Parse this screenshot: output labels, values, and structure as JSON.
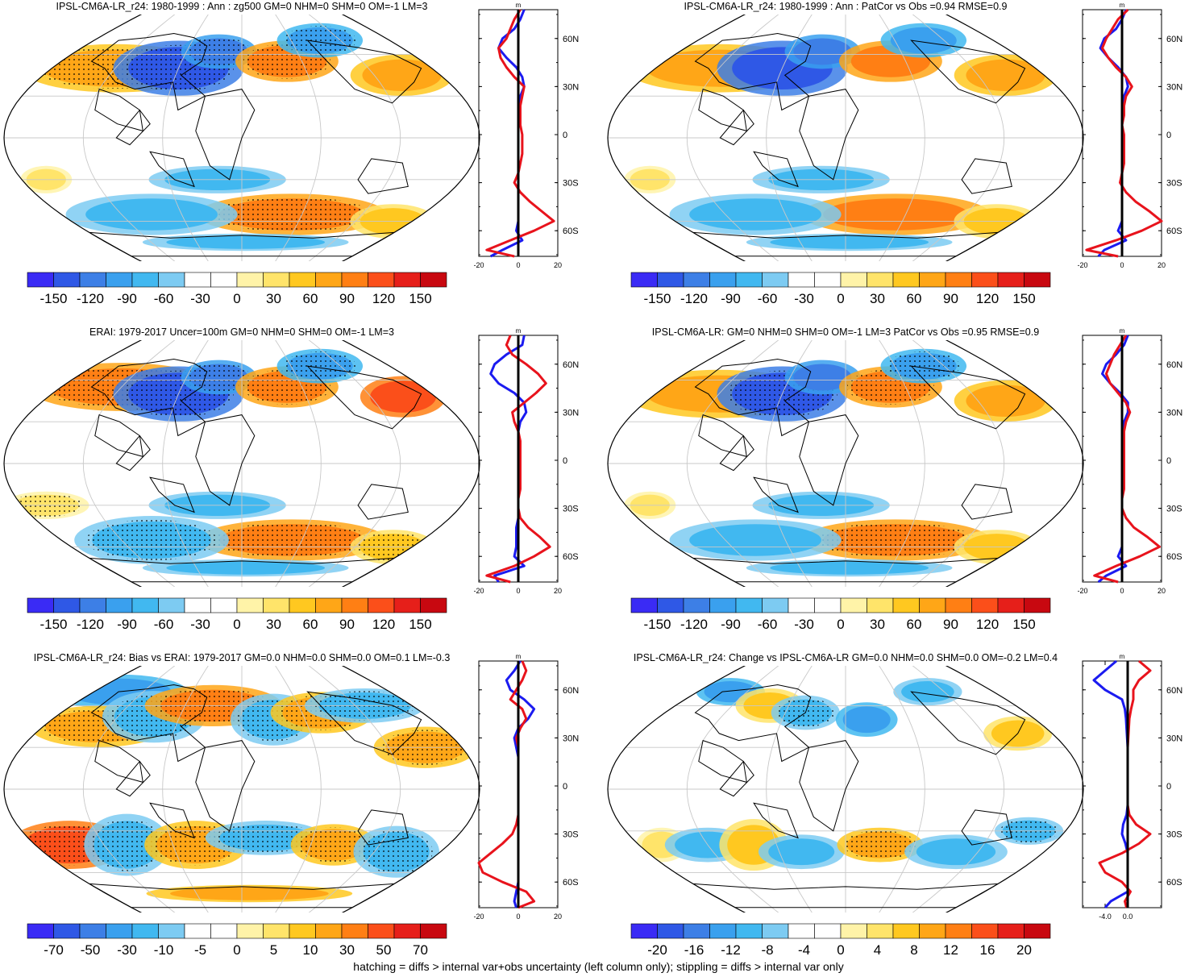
{
  "chart_data": [
    {
      "type": "heatmap",
      "title": "IPSL-CM6A-LR_r24: 1980-1999 : Ann : zg500 GM=0 NHM=0 SHM=0 OM=-1 LM=3",
      "colorbar_ticks": [
        "-150",
        "-120",
        "-90",
        "-60",
        "-30",
        "0",
        "30",
        "60",
        "90",
        "120",
        "150"
      ],
      "zonal": {
        "unit": "m",
        "xticks": [
          "-20",
          "0",
          "20"
        ],
        "xlim": [
          -20,
          20
        ],
        "ylabels": [
          "60N",
          "30N",
          "0",
          "30S",
          "60S"
        ],
        "lat": [
          78,
          72,
          66,
          60,
          54,
          48,
          42,
          36,
          30,
          24,
          18,
          12,
          6,
          0,
          -6,
          -12,
          -18,
          -24,
          -30,
          -36,
          -42,
          -48,
          -54,
          -60,
          -66,
          -72,
          -76
        ],
        "model": [
          1,
          -2,
          -4,
          -6,
          -10,
          -9,
          -6,
          -2,
          3,
          2,
          1,
          1,
          1,
          2,
          2,
          2,
          1,
          0,
          -2,
          1,
          6,
          12,
          18,
          8,
          -4,
          -16,
          -2
        ],
        "obs": [
          3,
          1,
          -2,
          -8,
          -10,
          -6,
          -1,
          2,
          3,
          1,
          0,
          0,
          0,
          0,
          0,
          0,
          0,
          0,
          0,
          0,
          0,
          0,
          0,
          -1,
          2,
          -8,
          -14
        ]
      }
    },
    {
      "type": "heatmap",
      "title": "IPSL-CM6A-LR_r24: 1980-1999 : Ann : PatCor vs Obs =0.94 RMSE=0.9",
      "colorbar_ticks": [
        "-150",
        "-120",
        "-90",
        "-60",
        "-30",
        "0",
        "30",
        "60",
        "90",
        "120",
        "150"
      ],
      "zonal": {
        "unit": "m",
        "xticks": [
          "-20",
          "0",
          "20"
        ],
        "xlim": [
          -20,
          20
        ],
        "ylabels": [
          "60N",
          "30N",
          "0",
          "30S",
          "60S"
        ],
        "lat": [
          78,
          72,
          66,
          60,
          54,
          48,
          42,
          36,
          30,
          24,
          18,
          12,
          6,
          0,
          -6,
          -12,
          -18,
          -24,
          -30,
          -36,
          -42,
          -48,
          -54,
          -60,
          -66,
          -72,
          -76
        ],
        "model": [
          3,
          -2,
          -5,
          -8,
          -10,
          -7,
          -3,
          2,
          5,
          2,
          1,
          1,
          0,
          1,
          1,
          1,
          1,
          0,
          -1,
          2,
          7,
          14,
          20,
          10,
          -3,
          -18,
          -2
        ],
        "obs": [
          2,
          0,
          -3,
          -9,
          -11,
          -7,
          -2,
          2,
          3,
          1,
          0,
          0,
          0,
          0,
          0,
          0,
          0,
          0,
          0,
          0,
          0,
          0,
          0,
          -2,
          2,
          -9,
          -12
        ]
      }
    },
    {
      "type": "heatmap",
      "title": "ERAI: 1979-2017 Uncer=100m GM=0 NHM=0 SHM=0 OM=-1 LM=3",
      "colorbar_ticks": [
        "-150",
        "-120",
        "-90",
        "-60",
        "-30",
        "0",
        "30",
        "60",
        "90",
        "120",
        "150"
      ],
      "zonal": {
        "unit": "m",
        "xticks": [
          "-20",
          "0",
          "20"
        ],
        "xlim": [
          -20,
          20
        ],
        "ylabels": [
          "60N",
          "30N",
          "0",
          "30S",
          "60S"
        ],
        "lat": [
          78,
          72,
          66,
          60,
          54,
          48,
          42,
          36,
          30,
          24,
          18,
          12,
          6,
          0,
          -6,
          -12,
          -18,
          -24,
          -30,
          -36,
          -42,
          -48,
          -54,
          -60,
          -66,
          -72,
          -76
        ],
        "model": [
          -4,
          -6,
          -3,
          4,
          10,
          14,
          9,
          3,
          -3,
          -2,
          0,
          1,
          1,
          1,
          1,
          1,
          1,
          0,
          0,
          1,
          5,
          11,
          16,
          8,
          -2,
          -16,
          -4
        ],
        "obs": [
          3,
          2,
          -6,
          -12,
          -14,
          -10,
          -2,
          3,
          4,
          1,
          0,
          0,
          0,
          0,
          0,
          0,
          0,
          0,
          0,
          0,
          -1,
          -1,
          -1,
          -2,
          3,
          -12,
          -10
        ]
      }
    },
    {
      "type": "heatmap",
      "title": "IPSL-CM6A-LR: GM=0 NHM=0 SHM=0 OM=-1 LM=3 PatCor vs Obs =0.95 RMSE=0.9",
      "colorbar_ticks": [
        "-150",
        "-120",
        "-90",
        "-60",
        "-30",
        "0",
        "30",
        "60",
        "90",
        "120",
        "150"
      ],
      "zonal": {
        "unit": "m",
        "xticks": [
          "-20",
          "0",
          "20"
        ],
        "xlim": [
          -20,
          20
        ],
        "ylabels": [
          "60N",
          "30N",
          "0",
          "30S",
          "60S"
        ],
        "lat": [
          78,
          72,
          66,
          60,
          54,
          48,
          42,
          36,
          30,
          24,
          18,
          12,
          6,
          0,
          -6,
          -12,
          -18,
          -24,
          -30,
          -36,
          -42,
          -48,
          -54,
          -60,
          -66,
          -72,
          -76
        ],
        "model": [
          2,
          -1,
          -4,
          -6,
          -8,
          -6,
          -2,
          2,
          4,
          2,
          1,
          1,
          1,
          1,
          1,
          1,
          1,
          0,
          0,
          2,
          6,
          13,
          19,
          9,
          -3,
          -14,
          -2
        ],
        "obs": [
          3,
          1,
          -3,
          -8,
          -10,
          -6,
          -1,
          3,
          3,
          1,
          0,
          0,
          0,
          0,
          0,
          0,
          0,
          0,
          0,
          0,
          0,
          0,
          0,
          -2,
          2,
          -8,
          -12
        ]
      }
    },
    {
      "type": "heatmap",
      "title": "IPSL-CM6A-LR_r24: Bias vs ERAI: 1979-2017 GM=0.0 NHM=0.0 SHM=0.0 OM=0.1 LM=-0.3",
      "colorbar_ticks": [
        "-70",
        "-50",
        "-30",
        "-10",
        "-5",
        "0",
        "5",
        "10",
        "30",
        "50",
        "70"
      ],
      "zonal": {
        "unit": "m",
        "xticks": [
          "-20",
          "0",
          "20"
        ],
        "xlim": [
          -20,
          20
        ],
        "ylabels": [
          "60N",
          "30N",
          "0",
          "30S",
          "60S"
        ],
        "lat": [
          78,
          72,
          66,
          60,
          54,
          48,
          42,
          36,
          30,
          24,
          18,
          12,
          6,
          0,
          -6,
          -12,
          -18,
          -24,
          -30,
          -36,
          -42,
          -48,
          -54,
          -60,
          -66,
          -72,
          -76
        ],
        "model": [
          2,
          4,
          2,
          -1,
          -4,
          2,
          4,
          1,
          -1,
          0,
          0,
          0,
          0,
          0,
          0,
          0,
          0,
          -1,
          -3,
          -8,
          -14,
          -20,
          -18,
          -8,
          4,
          8,
          0
        ],
        "obs": [
          1,
          -2,
          -6,
          -4,
          3,
          8,
          5,
          0,
          -2,
          -1,
          0,
          0,
          0,
          0,
          0,
          0,
          0,
          0,
          0,
          0,
          0,
          0,
          0,
          0,
          -1,
          -2,
          -1
        ]
      }
    },
    {
      "type": "heatmap",
      "title": "IPSL-CM6A-LR_r24: Change vs IPSL-CM6A-LR GM=0.0 NHM=0.0 SHM=0.0 OM=-0.2 LM=0.4",
      "colorbar_ticks": [
        "-20",
        "-16",
        "-12",
        "-8",
        "-4",
        "0",
        "4",
        "8",
        "12",
        "16",
        "20"
      ],
      "zonal": {
        "unit": "m",
        "xticks": [
          "-4.0",
          "0.0"
        ],
        "xlim": [
          -8,
          6
        ],
        "ylabels": [
          "60N",
          "30N",
          "0",
          "30S",
          "60S"
        ],
        "lat": [
          78,
          72,
          66,
          60,
          54,
          48,
          42,
          36,
          30,
          24,
          18,
          12,
          6,
          0,
          -6,
          -12,
          -18,
          -24,
          -30,
          -36,
          -42,
          -48,
          -54,
          -60,
          -66,
          -72,
          -76
        ],
        "model": [
          2,
          4,
          2,
          1,
          1,
          0.6,
          0.3,
          0.2,
          0.1,
          0,
          0,
          0,
          0,
          0,
          0,
          0,
          0.3,
          1.5,
          4,
          2,
          -1,
          -5,
          -4,
          -1,
          0.5,
          -0.5,
          -0.2
        ],
        "obs": [
          -2,
          -4,
          -6,
          -4,
          -1,
          -0.5,
          -0.3,
          -0.2,
          -0.1,
          0,
          0,
          0,
          0,
          0,
          0,
          0,
          -0.2,
          -0.8,
          -1,
          -0.4,
          0,
          0,
          0,
          0,
          0,
          -3,
          -4
        ]
      }
    }
  ],
  "footer_note": "hatching = diffs > internal var+obs uncertainty (left column only); stippling = diffs > internal var only",
  "colors": {
    "model_line": "#e8131c",
    "obs_line": "#1b1bf0",
    "zero_line": "#000000",
    "coast": "#000000",
    "grid": "#c8c8c8",
    "palette": [
      "#3a2bf5",
      "#2f58e6",
      "#3d7fe6",
      "#3aa0ee",
      "#41b8f0",
      "#7dcbf2",
      "#ffffff",
      "#ffffff",
      "#fff3a8",
      "#ffe46a",
      "#ffc820",
      "#ffa617",
      "#ff7f14",
      "#fb4f1a",
      "#e61f1a",
      "#c80810"
    ]
  }
}
